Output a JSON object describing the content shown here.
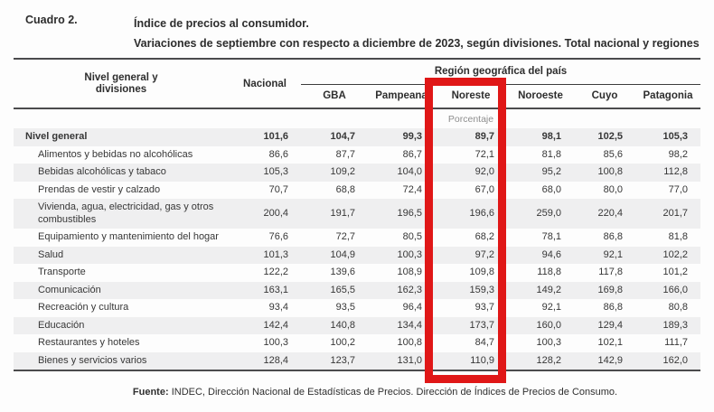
{
  "header": {
    "cuadro": "Cuadro 2.",
    "title": "Índice de precios al consumidor.",
    "subtitle": "Variaciones de septiembre con respecto a diciembre de 2023, según divisiones. Total nacional y regiones"
  },
  "table": {
    "col_headers": {
      "divisions": "Nivel general y divisiones",
      "nacional": "Nacional",
      "region_group": "Región geográfica del país",
      "regions": [
        "GBA",
        "Pampeana",
        "Noreste",
        "Noroeste",
        "Cuyo",
        "Patagonia"
      ]
    },
    "unit_label": "Porcentaje",
    "rows": [
      {
        "label": "Nivel general",
        "values": [
          "101,6",
          "104,7",
          "99,3",
          "89,7",
          "98,1",
          "102,5",
          "105,3"
        ]
      },
      {
        "label": "Alimentos y bebidas no alcohólicas",
        "values": [
          "86,6",
          "87,7",
          "86,7",
          "72,1",
          "81,8",
          "85,6",
          "98,2"
        ]
      },
      {
        "label": "Bebidas alcohólicas y tabaco",
        "values": [
          "105,3",
          "109,2",
          "104,0",
          "92,0",
          "95,2",
          "100,8",
          "112,8"
        ]
      },
      {
        "label": "Prendas de vestir y calzado",
        "values": [
          "70,7",
          "68,8",
          "72,4",
          "67,0",
          "68,0",
          "80,0",
          "77,0"
        ]
      },
      {
        "label": "Vivienda, agua, electricidad, gas y otros combustibles",
        "values": [
          "200,4",
          "191,7",
          "196,5",
          "196,6",
          "259,0",
          "220,4",
          "201,7"
        ]
      },
      {
        "label": "Equipamiento y mantenimiento del hogar",
        "values": [
          "76,6",
          "72,7",
          "80,5",
          "68,2",
          "78,1",
          "86,8",
          "81,8"
        ]
      },
      {
        "label": "Salud",
        "values": [
          "101,3",
          "104,9",
          "100,3",
          "97,2",
          "94,6",
          "92,1",
          "102,2"
        ]
      },
      {
        "label": "Transporte",
        "values": [
          "122,2",
          "139,6",
          "108,9",
          "109,8",
          "118,8",
          "117,8",
          "101,2"
        ]
      },
      {
        "label": "Comunicación",
        "values": [
          "163,1",
          "165,5",
          "162,3",
          "159,3",
          "149,2",
          "169,8",
          "166,0"
        ]
      },
      {
        "label": "Recreación y cultura",
        "values": [
          "93,4",
          "93,5",
          "96,4",
          "93,7",
          "92,1",
          "86,8",
          "80,8"
        ]
      },
      {
        "label": "Educación",
        "values": [
          "142,4",
          "140,8",
          "134,4",
          "173,7",
          "160,0",
          "129,4",
          "189,3"
        ]
      },
      {
        "label": "Restaurantes y hoteles",
        "values": [
          "100,3",
          "100,2",
          "100,8",
          "84,7",
          "100,3",
          "102,1",
          "111,7"
        ]
      },
      {
        "label": "Bienes y servicios varios",
        "values": [
          "128,4",
          "123,7",
          "131,0",
          "110,9",
          "128,2",
          "142,9",
          "162,0"
        ]
      }
    ]
  },
  "highlight": {
    "column": "Noreste",
    "color": "#e01717"
  },
  "footer": {
    "fuente_label": "Fuente:",
    "fuente_text": "INDEC, Dirección Nacional de Estadísticas de Precios. Dirección de Índices de Precios de Consumo."
  }
}
